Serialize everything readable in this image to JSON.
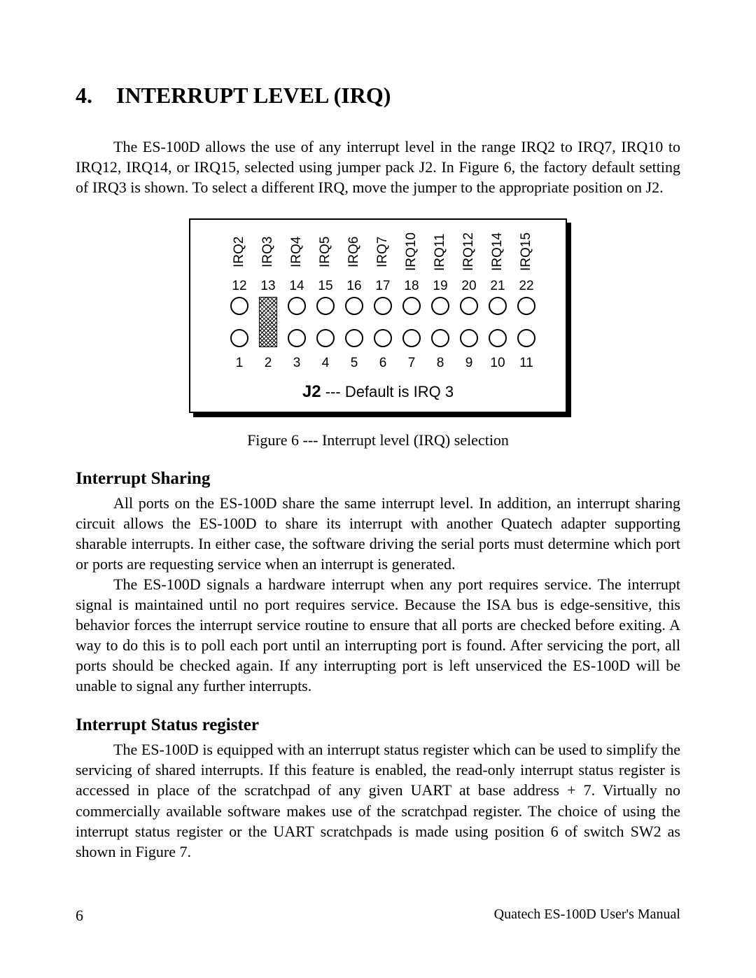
{
  "section": {
    "number": "4.",
    "title": "INTERRUPT LEVEL (IRQ)"
  },
  "intro": "The ES-100D allows the use of any interrupt level in the range IRQ2 to IRQ7, IRQ10 to IRQ12, IRQ14, or IRQ15, selected using jumper pack J2.  In Figure 6, the factory default setting of IRQ3 is shown.  To select a different IRQ, move the jumper to the appropriate position on J2.",
  "figure": {
    "columns_left_start": 20,
    "col_spacing": 41,
    "irq_labels": [
      "IRQ2",
      "IRQ3",
      "IRQ4",
      "IRQ5",
      "IRQ6",
      "IRQ7",
      "IRQ10",
      "IRQ11",
      "IRQ12",
      "IRQ14",
      "IRQ15"
    ],
    "top_numbers": [
      "12",
      "13",
      "14",
      "15",
      "16",
      "17",
      "18",
      "19",
      "20",
      "21",
      "22"
    ],
    "bot_numbers": [
      "1",
      "2",
      "3",
      "4",
      "5",
      "6",
      "7",
      "8",
      "9",
      "10",
      "11"
    ],
    "jumper_col_index": 1,
    "bottom_label_prefix": "J2",
    "bottom_label_rest": " --- Default is IRQ 3",
    "caption": "Figure 6 --- Interrupt level (IRQ) selection"
  },
  "sub1": {
    "heading": "Interrupt Sharing",
    "p1": "All ports on the ES-100D share the same interrupt level.  In addition, an interrupt sharing circuit allows the ES-100D to share its interrupt with another Quatech adapter supporting sharable interrupts.  In either case, the software driving the serial ports must determine which port or ports are requesting service when an interrupt is generated.",
    "p2": "The ES-100D signals a hardware interrupt when any port requires service. The interrupt signal is maintained until no port requires service.  Because the ISA bus is edge-sensitive, this behavior forces the interrupt service routine to ensure that all ports are checked before exiting.  A way to do this is to poll each port until an interrupting port is found.  After servicing the port, all ports should be checked again.  If any interrupting port is left unserviced the ES-100D will be unable to signal any further interrupts."
  },
  "sub2": {
    "heading": "Interrupt Status register",
    "p1": "The ES-100D is equipped with an interrupt status register which can be used to simplify the servicing of shared interrupts.  If this feature is enabled, the read-only interrupt status register is accessed in place of the scratchpad of any given UART at base address + 7.  Virtually no commercially available software makes use of the scratchpad register.  The choice of using the interrupt status register or the UART scratchpads  is made using position 6 of switch SW2 as shown in Figure 7."
  },
  "footer": {
    "page": "6",
    "text": "Quatech ES-100D User's Manual"
  }
}
